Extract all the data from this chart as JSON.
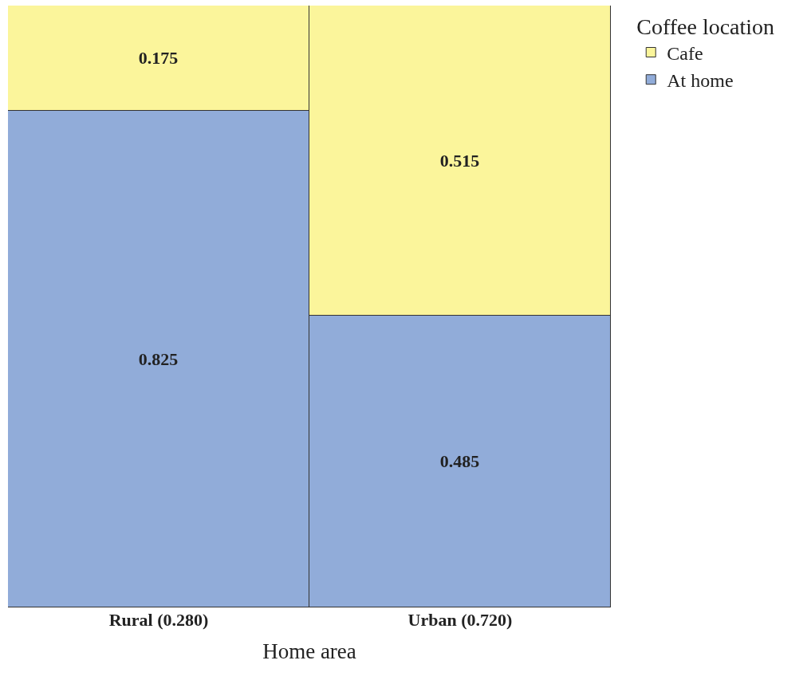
{
  "chart_data": {
    "type": "bar",
    "stacked": true,
    "xlabel": "Home area",
    "legend_title": "Coffee location",
    "legend": "top right",
    "data_labels": true,
    "tick_labels": "x",
    "categories": [
      "Rural (0.280)",
      "Urban (0.720)"
    ],
    "ylim": [
      0,
      1
    ],
    "series": [
      {
        "name": "At home",
        "color": "#91acd9",
        "values": [
          0.825,
          0.485
        ]
      },
      {
        "name": "Cafe",
        "color": "#fbf59b",
        "values": [
          0.175,
          0.515
        ]
      }
    ]
  }
}
